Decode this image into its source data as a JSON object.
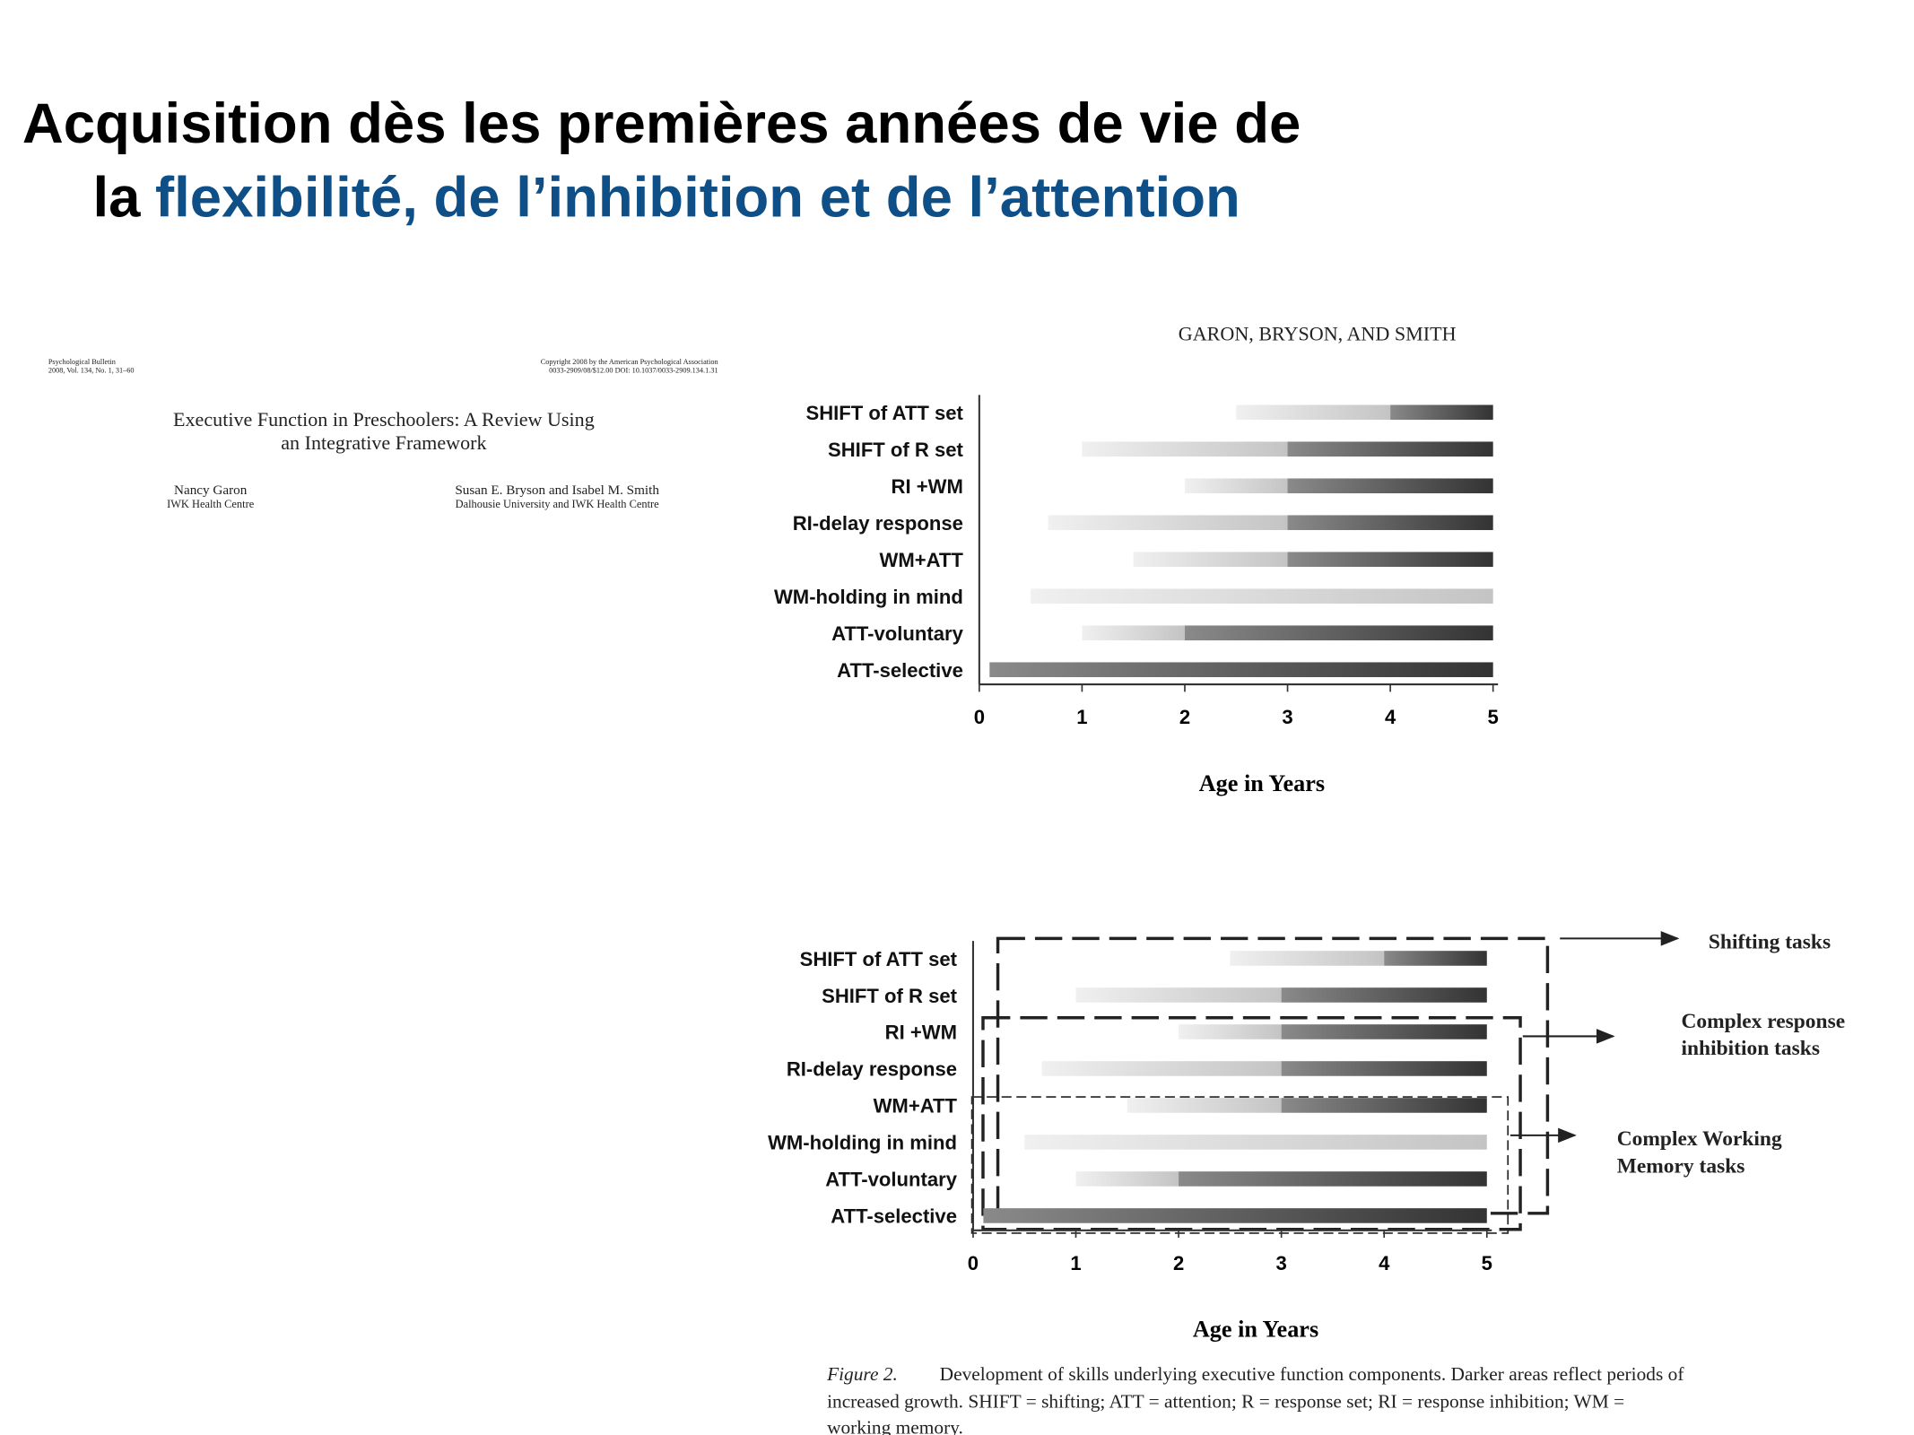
{
  "slide_title": {
    "lines": [
      "Acquisition dès les premières années de vie de",
      "la",
      "flexibilité, de l’inhibition et de l’attention"
    ],
    "highlight_color": "#0d4f86"
  },
  "paper": {
    "journal": [
      "Psychological Bulletin",
      "2008, Vol. 134, No. 1, 31–60"
    ],
    "copyright": [
      "Copyright 2008 by the American Psychological Association",
      "0033-2909/08/$12.00   DOI: 10.1037/0033-2909.134.1.31"
    ],
    "title": [
      "Executive Function in Preschoolers: A Review Using",
      "an Integrative Framework"
    ],
    "authors": [
      [
        "Nancy Garon",
        "IWK Health Centre"
      ],
      [
        "Susan E. Bryson and Isabel M. Smith",
        "Dalhousie University and IWK Health Centre"
      ]
    ],
    "running_head": "GARON, BRYSON, AND SMITH"
  },
  "chart_data": [
    {
      "type": "range-bar",
      "categories": [
        "SHIFT of ATT set",
        "SHIFT of R set",
        "RI +WM",
        "RI-delay response",
        "WM+ATT",
        "WM-holding in mind",
        "ATT-voluntary",
        "ATT-selective"
      ],
      "values": [
        [
          2.5,
          4,
          5
        ],
        [
          1,
          3,
          5
        ],
        [
          2,
          3,
          5
        ],
        [
          0.67,
          3,
          5
        ],
        [
          1.5,
          3,
          5
        ],
        [
          0.5,
          5,
          5
        ],
        [
          1,
          2,
          5
        ],
        [
          0.1,
          0.1,
          5
        ]
      ],
      "xlim": [
        0,
        5
      ],
      "xticks": [
        0,
        1,
        2,
        3,
        4,
        5
      ],
      "xlabel": "Age in Years"
    },
    {
      "type": "range-bar",
      "categories": [
        "SHIFT of ATT set",
        "SHIFT of R set",
        "RI +WM",
        "RI-delay response",
        "WM+ATT",
        "WM-holding in mind",
        "ATT-voluntary",
        "ATT-selective"
      ],
      "values": [
        [
          2.5,
          4,
          5
        ],
        [
          1,
          3,
          5
        ],
        [
          2,
          3,
          5
        ],
        [
          0.67,
          3,
          5
        ],
        [
          1.5,
          3,
          5
        ],
        [
          0.5,
          5,
          5
        ],
        [
          1,
          2,
          5
        ],
        [
          0.1,
          0.1,
          5
        ]
      ],
      "xlim": [
        0,
        5
      ],
      "xticks": [
        0,
        1,
        2,
        3,
        4,
        5
      ],
      "xlabel": "Age in Years",
      "annotations": [
        [
          "Shifting tasks"
        ],
        [
          "Complex response",
          "inhibition tasks"
        ],
        [
          "Complex Working",
          "Memory tasks"
        ]
      ]
    }
  ],
  "caption": {
    "label": "Figure 2.",
    "lines": [
      "Development of skills underlying executive function components. Darker areas reflect periods of",
      "increased growth. SHIFT = shifting; ATT = attention; R = response set; RI = response inhibition; WM =",
      "working memory."
    ]
  }
}
